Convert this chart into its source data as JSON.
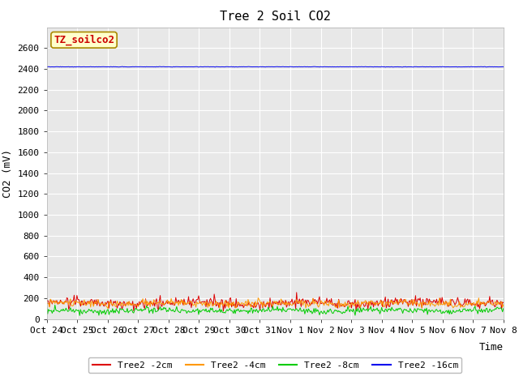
{
  "title": "Tree 2 Soil CO2",
  "ylabel": "CO2 (mV)",
  "xlabel": "Time",
  "ylim": [
    0,
    2800
  ],
  "yticks": [
    0,
    200,
    400,
    600,
    800,
    1000,
    1200,
    1400,
    1600,
    1800,
    2000,
    2200,
    2400,
    2600
  ],
  "xtick_labels": [
    "Oct 24",
    "Oct 25",
    "Oct 26",
    "Oct 27",
    "Oct 28",
    "Oct 29",
    "Oct 30",
    "Oct 31",
    "Nov 1",
    "Nov 2",
    "Nov 3",
    "Nov 4",
    "Nov 5",
    "Nov 6",
    "Nov 7",
    "Nov 8"
  ],
  "series_names": [
    "Tree2 -2cm",
    "Tree2 -4cm",
    "Tree2 -8cm",
    "Tree2 -16cm"
  ],
  "series_colors": [
    "#dd0000",
    "#ff9900",
    "#00cc00",
    "#0000ee"
  ],
  "series_bases": [
    155,
    150,
    80,
    2420
  ],
  "series_noises": [
    28,
    18,
    15,
    1
  ],
  "series_seeds": [
    1,
    2,
    3,
    4
  ],
  "n_points": 500,
  "legend_label": "TZ_soilco2",
  "legend_bg": "#ffffcc",
  "legend_fg": "#cc0000",
  "legend_border": "#aa8800",
  "plot_bg": "#e8e8e8",
  "fig_bg": "#ffffff",
  "grid_color": "#ffffff",
  "grid_linewidth": 0.8,
  "title_fontsize": 11,
  "axis_label_fontsize": 9,
  "tick_fontsize": 8,
  "legend_fontsize": 8,
  "tz_fontsize": 9
}
